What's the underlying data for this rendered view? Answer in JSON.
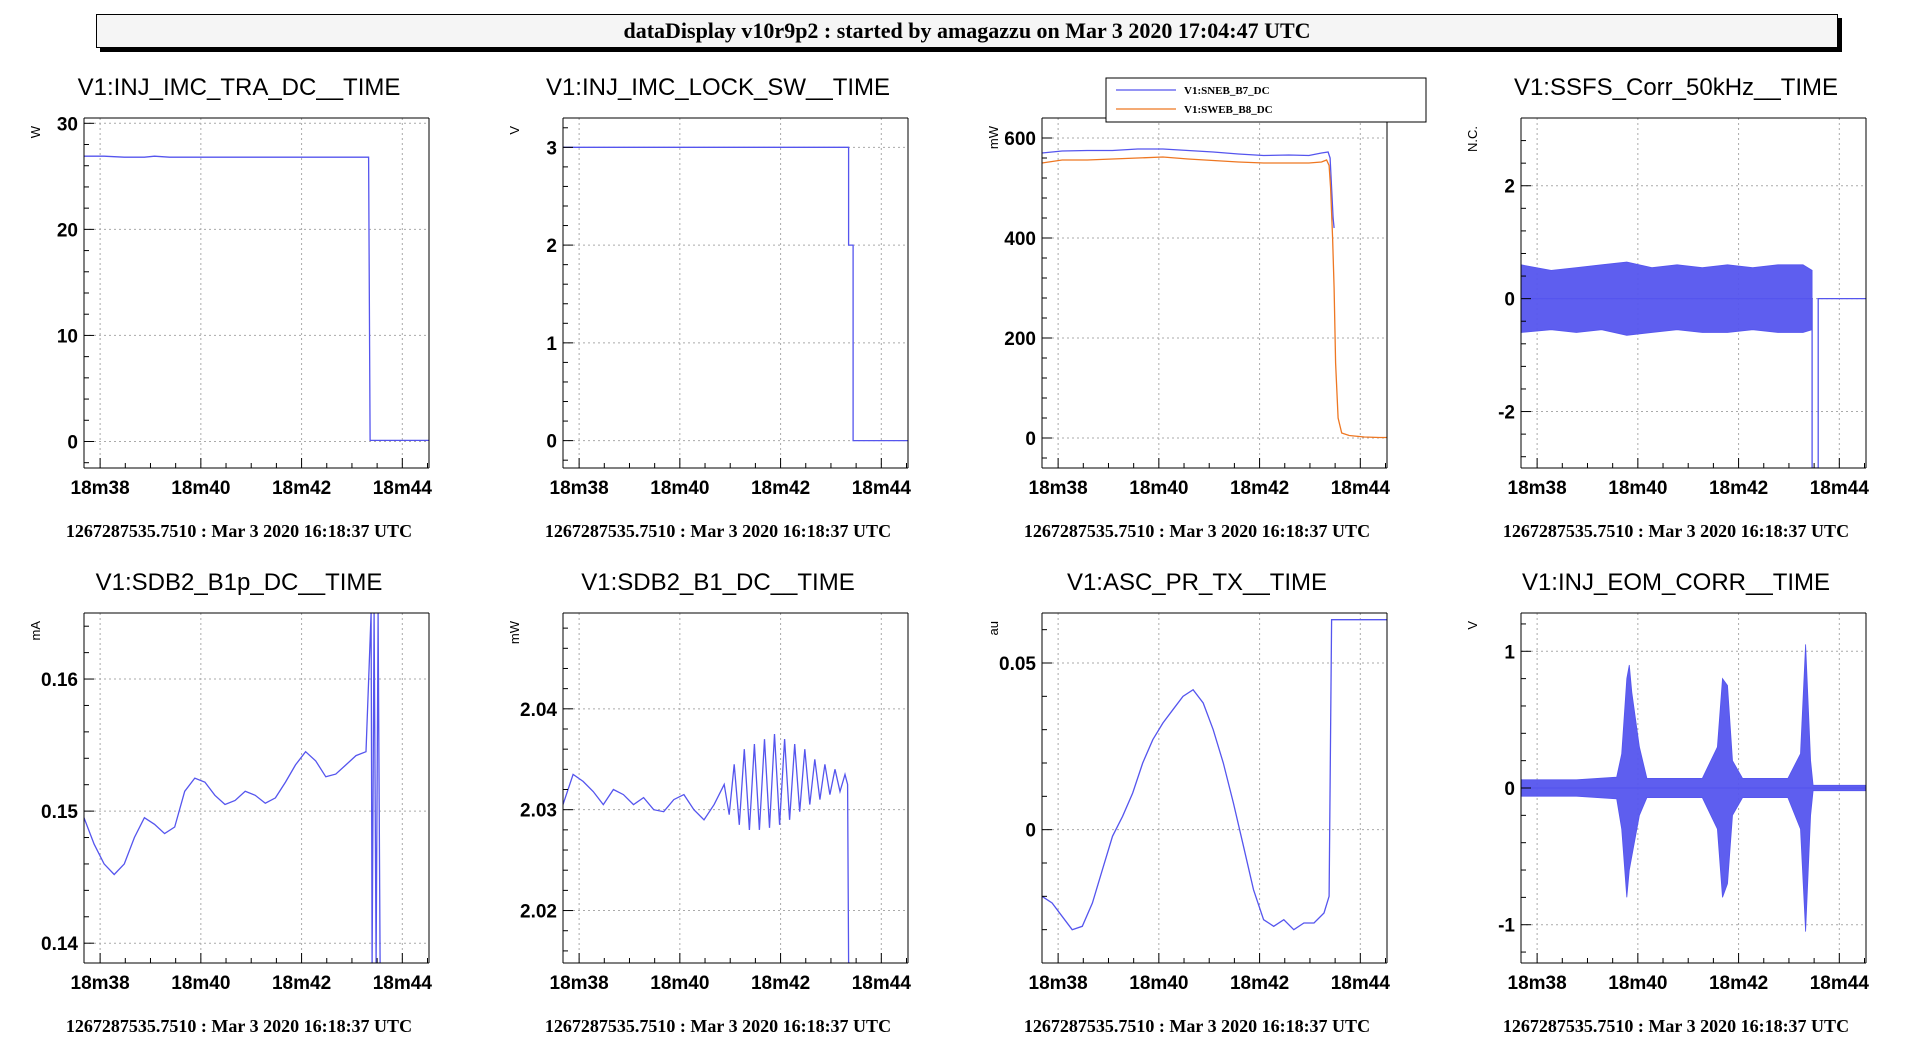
{
  "header": {
    "title": "dataDisplay v10r9p2 : started by amagazzu on Mar  3 2020 17:04:47 UTC"
  },
  "colors": {
    "series1": "#5555ee",
    "series2": "#ee7722",
    "grid": "#aaaaaa",
    "axis": "#000000"
  },
  "chart_data": [
    {
      "type": "line",
      "title": "V1:INJ_IMC_TRA_DC__TIME",
      "ylabel": "W",
      "footer": "1267287535.7510 : Mar  3 2020 16:18:37 UTC",
      "x_tick_labels": [
        "18m38",
        "18m40",
        "18m42",
        "18m44"
      ],
      "x_ticks": [
        0.22,
        2.22,
        4.22,
        6.22
      ],
      "xlim": [
        -0.1,
        6.75
      ],
      "ylim": [
        -2.5,
        30.5
      ],
      "y_ticks": [
        0,
        10,
        20,
        30
      ],
      "y_tick_labels": [
        "0",
        "10",
        "20",
        "30"
      ],
      "series": [
        {
          "x": [
            -0.1,
            0.3,
            0.7,
            1.1,
            1.3,
            1.6,
            2.0,
            3.0,
            4.0,
            5.2,
            5.55,
            5.58,
            5.61,
            6.75
          ],
          "y": [
            26.9,
            26.9,
            26.8,
            26.8,
            26.9,
            26.8,
            26.8,
            26.8,
            26.8,
            26.8,
            26.8,
            0.1,
            0.1,
            0.1
          ]
        }
      ]
    },
    {
      "type": "line",
      "title": "V1:INJ_IMC_LOCK_SW__TIME",
      "ylabel": "V",
      "footer": "1267287535.7510 : Mar  3 2020 16:18:37 UTC",
      "x_tick_labels": [
        "18m38",
        "18m40",
        "18m42",
        "18m44"
      ],
      "x_ticks": [
        0.22,
        2.22,
        4.22,
        6.22
      ],
      "xlim": [
        -0.1,
        6.75
      ],
      "ylim": [
        -0.28,
        3.3
      ],
      "y_ticks": [
        0,
        1,
        2,
        3
      ],
      "y_tick_labels": [
        "0",
        "1",
        "2",
        "3"
      ],
      "series": [
        {
          "x": [
            -0.1,
            5.57,
            5.57,
            5.63,
            5.63,
            5.66,
            5.66,
            6.75
          ],
          "y": [
            3,
            3,
            2,
            2,
            2,
            2,
            0,
            0
          ]
        }
      ]
    },
    {
      "type": "line",
      "title": "",
      "ylabel": "mW",
      "footer": "1267287535.7510 : Mar  3 2020 16:18:37 UTC",
      "x_tick_labels": [
        "18m38",
        "18m40",
        "18m42",
        "18m44"
      ],
      "x_ticks": [
        0.22,
        2.22,
        4.22,
        6.22
      ],
      "xlim": [
        -0.1,
        6.75
      ],
      "ylim": [
        -60,
        640
      ],
      "y_ticks": [
        0,
        200,
        400,
        600
      ],
      "y_tick_labels": [
        "0",
        "200",
        "400",
        "600"
      ],
      "legend": [
        "V1:SNEB_B7_DC",
        "V1:SWEB_B8_DC"
      ],
      "series": [
        {
          "name": "V1:SNEB_B7_DC",
          "x": [
            -0.1,
            0.3,
            0.8,
            1.3,
            1.8,
            2.3,
            2.8,
            3.3,
            3.8,
            4.3,
            4.8,
            5.2,
            5.45,
            5.58,
            5.62,
            5.66,
            5.68,
            5.7
          ],
          "y": [
            570,
            574,
            575,
            575,
            578,
            578,
            575,
            572,
            568,
            565,
            566,
            565,
            570,
            572,
            560,
            480,
            440,
            420
          ]
        },
        {
          "name": "V1:SWEB_B8_DC",
          "x": [
            -0.1,
            0.3,
            0.8,
            1.3,
            1.8,
            2.3,
            2.8,
            3.3,
            3.8,
            4.3,
            4.8,
            5.2,
            5.45,
            5.55,
            5.6,
            5.63,
            5.67,
            5.7,
            5.73,
            5.78,
            5.85,
            6.0,
            6.3,
            6.6,
            6.75
          ],
          "y": [
            550,
            556,
            556,
            558,
            560,
            562,
            558,
            555,
            552,
            550,
            550,
            550,
            552,
            556,
            545,
            500,
            400,
            300,
            150,
            40,
            10,
            5,
            2,
            1,
            1
          ]
        }
      ]
    },
    {
      "type": "line",
      "title": "V1:SSFS_Corr_50kHz__TIME",
      "ylabel": "N.C.",
      "footer": "1267287535.7510 : Mar  3 2020 16:18:37 UTC",
      "x_tick_labels": [
        "18m38",
        "18m40",
        "18m42",
        "18m44"
      ],
      "x_ticks": [
        0.22,
        2.22,
        4.22,
        6.22
      ],
      "xlim": [
        -0.1,
        6.75
      ],
      "ylim": [
        -3.0,
        3.2
      ],
      "y_ticks": [
        -2,
        0,
        2
      ],
      "y_tick_labels": [
        "-2",
        "0",
        "2"
      ],
      "series": [
        {
          "x": [
            -0.1,
            5.68,
            5.68,
            5.8,
            5.8,
            6.75
          ],
          "y": [
            0,
            0,
            -3.0,
            -3.0,
            0,
            0
          ],
          "band_x": [
            -0.1,
            0.5,
            1.0,
            1.5,
            2.0,
            2.5,
            3.0,
            3.5,
            4.0,
            4.5,
            5.0,
            5.5,
            5.68
          ],
          "band_hi": [
            0.6,
            0.5,
            0.55,
            0.6,
            0.65,
            0.55,
            0.6,
            0.55,
            0.6,
            0.55,
            0.6,
            0.6,
            0.5
          ],
          "band_lo": [
            -0.6,
            -0.55,
            -0.6,
            -0.55,
            -0.65,
            -0.6,
            -0.55,
            -0.6,
            -0.6,
            -0.55,
            -0.6,
            -0.6,
            -0.55
          ]
        }
      ]
    },
    {
      "type": "line",
      "title": "V1:SDB2_B1p_DC__TIME",
      "ylabel": "mA",
      "footer": "1267287535.7510 : Mar  3 2020 16:18:37 UTC",
      "x_tick_labels": [
        "18m38",
        "18m40",
        "18m42",
        "18m44"
      ],
      "x_ticks": [
        0.22,
        2.22,
        4.22,
        6.22
      ],
      "xlim": [
        -0.1,
        6.75
      ],
      "ylim": [
        0.1385,
        0.165
      ],
      "y_ticks": [
        0.14,
        0.15,
        0.16
      ],
      "y_tick_labels": [
        "0.14",
        "0.15",
        "0.16"
      ],
      "series": [
        {
          "x": [
            -0.1,
            0.1,
            0.3,
            0.5,
            0.7,
            0.9,
            1.1,
            1.3,
            1.5,
            1.7,
            1.9,
            2.1,
            2.3,
            2.5,
            2.7,
            2.9,
            3.1,
            3.3,
            3.5,
            3.7,
            3.9,
            4.1,
            4.3,
            4.5,
            4.7,
            4.9,
            5.1,
            5.3,
            5.5,
            5.6,
            5.62,
            5.66,
            5.7,
            5.74,
            5.78
          ],
          "y": [
            0.1495,
            0.1475,
            0.146,
            0.1452,
            0.146,
            0.148,
            0.1495,
            0.149,
            0.1483,
            0.1488,
            0.1515,
            0.1525,
            0.1522,
            0.1512,
            0.1505,
            0.1508,
            0.1515,
            0.1512,
            0.1506,
            0.151,
            0.1522,
            0.1535,
            0.1545,
            0.1538,
            0.1526,
            0.1528,
            0.1535,
            0.1542,
            0.1545,
            0.165,
            0.1385,
            0.165,
            0.1385,
            0.165,
            0.1385
          ]
        }
      ]
    },
    {
      "type": "line",
      "title": "V1:SDB2_B1_DC__TIME",
      "ylabel": "mW",
      "footer": "1267287535.7510 : Mar  3 2020 16:18:37 UTC",
      "x_tick_labels": [
        "18m38",
        "18m40",
        "18m42",
        "18m44"
      ],
      "x_ticks": [
        0.22,
        2.22,
        4.22,
        6.22
      ],
      "xlim": [
        -0.1,
        6.75
      ],
      "ylim": [
        2.0148,
        2.0495
      ],
      "y_ticks": [
        2.02,
        2.03,
        2.04
      ],
      "y_tick_labels": [
        "2.02",
        "2.03",
        "2.04"
      ],
      "series": [
        {
          "x": [
            -0.1,
            0.1,
            0.3,
            0.5,
            0.7,
            0.9,
            1.1,
            1.3,
            1.5,
            1.7,
            1.9,
            2.1,
            2.3,
            2.5,
            2.7,
            2.9,
            3.1,
            3.2,
            3.3,
            3.4,
            3.5,
            3.6,
            3.7,
            3.8,
            3.9,
            4.0,
            4.1,
            4.2,
            4.3,
            4.4,
            4.5,
            4.6,
            4.7,
            4.8,
            4.9,
            5.0,
            5.1,
            5.2,
            5.3,
            5.4,
            5.5,
            5.55,
            5.57,
            5.6
          ],
          "y": [
            2.0305,
            2.0335,
            2.0328,
            2.0318,
            2.0305,
            2.032,
            2.0315,
            2.0305,
            2.0312,
            2.03,
            2.0298,
            2.031,
            2.0315,
            2.03,
            2.029,
            2.0305,
            2.0325,
            2.0295,
            2.0345,
            2.0285,
            2.036,
            2.028,
            2.0365,
            2.028,
            2.037,
            2.0282,
            2.0375,
            2.0285,
            2.037,
            2.029,
            2.0365,
            2.0298,
            2.036,
            2.0305,
            2.035,
            2.031,
            2.0345,
            2.0315,
            2.034,
            2.0318,
            2.0335,
            2.0325,
            2.0148,
            2.0148
          ]
        }
      ]
    },
    {
      "type": "line",
      "title": "V1:ASC_PR_TX__TIME",
      "ylabel": "au",
      "footer": "1267287535.7510 : Mar  3 2020 16:18:37 UTC",
      "x_tick_labels": [
        "18m38",
        "18m40",
        "18m42",
        "18m44"
      ],
      "x_ticks": [
        0.22,
        2.22,
        4.22,
        6.22
      ],
      "xlim": [
        -0.1,
        6.75
      ],
      "ylim": [
        -0.04,
        0.065
      ],
      "y_ticks": [
        0,
        0.05
      ],
      "y_tick_labels": [
        "0",
        "0.05"
      ],
      "series": [
        {
          "x": [
            -0.1,
            0.1,
            0.3,
            0.5,
            0.7,
            0.9,
            1.1,
            1.3,
            1.5,
            1.7,
            1.9,
            2.1,
            2.3,
            2.5,
            2.7,
            2.9,
            3.1,
            3.3,
            3.5,
            3.7,
            3.9,
            4.1,
            4.3,
            4.5,
            4.7,
            4.9,
            5.1,
            5.3,
            5.5,
            5.6,
            5.65,
            5.7,
            6.75
          ],
          "y": [
            -0.02,
            -0.022,
            -0.026,
            -0.03,
            -0.029,
            -0.022,
            -0.012,
            -0.002,
            0.004,
            0.011,
            0.02,
            0.027,
            0.032,
            0.036,
            0.04,
            0.042,
            0.038,
            0.03,
            0.02,
            0.008,
            -0.005,
            -0.018,
            -0.027,
            -0.029,
            -0.027,
            -0.03,
            -0.028,
            -0.028,
            -0.025,
            -0.02,
            0.063,
            0.063,
            0.063
          ]
        }
      ]
    },
    {
      "type": "line",
      "title": "V1:INJ_EOM_CORR__TIME",
      "ylabel": "V",
      "footer": "1267287535.7510 : Mar  3 2020 16:18:37 UTC",
      "x_tick_labels": [
        "18m38",
        "18m40",
        "18m42",
        "18m44"
      ],
      "x_ticks": [
        0.22,
        2.22,
        4.22,
        6.22
      ],
      "xlim": [
        -0.1,
        6.75
      ],
      "ylim": [
        -1.28,
        1.28
      ],
      "y_ticks": [
        -1,
        0,
        1
      ],
      "y_tick_labels": [
        "-1",
        "0",
        "1"
      ],
      "series": [
        {
          "x": [
            -0.1,
            5.7,
            6.75
          ],
          "y": [
            0,
            0,
            0
          ],
          "band_x": [
            -0.1,
            1.0,
            1.8,
            1.9,
            2.0,
            2.05,
            2.1,
            2.25,
            2.4,
            3.5,
            3.8,
            3.9,
            4.0,
            4.1,
            4.3,
            5.2,
            5.45,
            5.55,
            5.65,
            5.7,
            6.75
          ],
          "band_hi": [
            0.06,
            0.06,
            0.08,
            0.25,
            0.8,
            0.9,
            0.7,
            0.3,
            0.07,
            0.07,
            0.3,
            0.8,
            0.75,
            0.2,
            0.07,
            0.07,
            0.25,
            1.05,
            0.2,
            0.02,
            0.02
          ],
          "band_lo": [
            -0.06,
            -0.06,
            -0.08,
            -0.3,
            -0.8,
            -0.6,
            -0.5,
            -0.2,
            -0.07,
            -0.07,
            -0.3,
            -0.8,
            -0.7,
            -0.2,
            -0.07,
            -0.07,
            -0.3,
            -1.05,
            -0.2,
            -0.02,
            -0.02
          ]
        }
      ]
    }
  ]
}
